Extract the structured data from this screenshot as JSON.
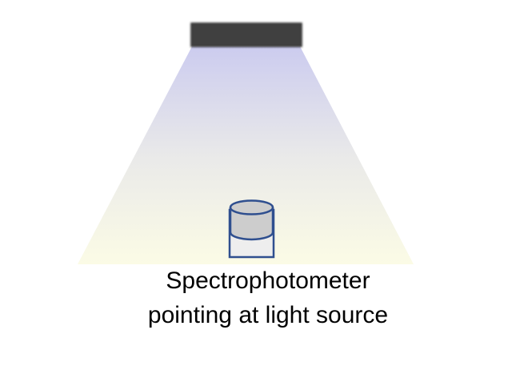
{
  "diagram": {
    "caption_lines": [
      "Spectrophotometer",
      "pointing at light source"
    ],
    "colors": {
      "light_source_fill": "#3f3f3f",
      "beam_top": "#c9c9ee",
      "beam_middle": "#e8e8e8",
      "beam_bottom": "#fbfbe4",
      "instrument_outline": "#2f4f8f",
      "instrument_body": "#eeeeee",
      "instrument_top": "#cdcdcd"
    },
    "elements": {
      "light_source": "light-source",
      "light_beam": "light-beam",
      "instrument": "spectrophotometer"
    }
  }
}
